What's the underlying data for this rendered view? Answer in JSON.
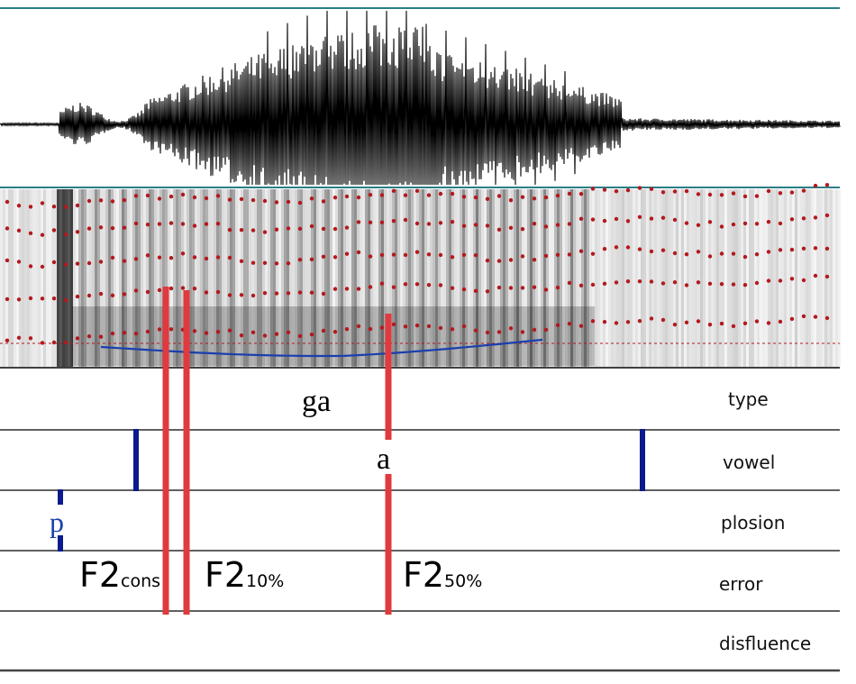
{
  "tiers": [
    {
      "name": "type",
      "label": "ga"
    },
    {
      "name": "vowel",
      "label": "a"
    },
    {
      "name": "plosion",
      "label": "p"
    },
    {
      "name": "error",
      "label": ""
    },
    {
      "name": "disfluence",
      "label": ""
    }
  ],
  "markers": [
    {
      "base": "F2",
      "sub": "cons"
    },
    {
      "base": "F2",
      "sub": "10%"
    },
    {
      "base": "F2",
      "sub": "50%"
    }
  ],
  "colors": {
    "waveform": "#000000",
    "border": "#2a7f87",
    "formant_dot": "#b3191e",
    "pitch_line": "#1a3fae",
    "measure_line": "#e03a3e",
    "boundary": "#0b1a8c",
    "tier_line": "#000000"
  }
}
